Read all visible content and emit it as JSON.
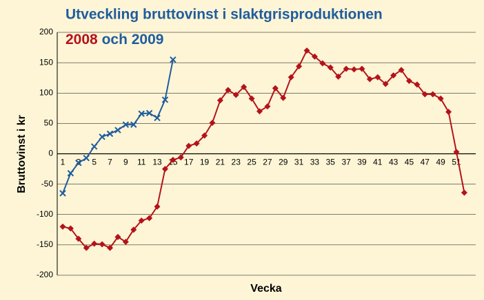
{
  "chart_data": {
    "type": "line",
    "title": "Utveckling bruttovinst i slaktgrisproduktionen",
    "title_joiner": "och",
    "y_label": "Bruttovinst i kr",
    "x_label": "Vecka",
    "categories": [
      1,
      null,
      3,
      null,
      5,
      null,
      7,
      null,
      9,
      null,
      11,
      null,
      13,
      null,
      15,
      null,
      17,
      null,
      19,
      null,
      21,
      null,
      23,
      null,
      25,
      null,
      27,
      null,
      29,
      null,
      31,
      null,
      33,
      null,
      35,
      null,
      37,
      null,
      39,
      null,
      41,
      null,
      43,
      null,
      45,
      null,
      47,
      null,
      49,
      null,
      51,
      null
    ],
    "series": [
      {
        "name": "2008",
        "color": "#b5121b",
        "marker": "diamond",
        "values": [
          -120,
          -123,
          -140,
          -155,
          -148,
          -149,
          -155,
          -137,
          -145,
          -125,
          -110,
          -106,
          -87,
          -25,
          -10,
          -6,
          13,
          17,
          30,
          51,
          88,
          105,
          97,
          110,
          91,
          70,
          78,
          108,
          92,
          126,
          144,
          170,
          160,
          149,
          142,
          127,
          140,
          139,
          140,
          123,
          126,
          115,
          129,
          138,
          120,
          114,
          98,
          98,
          91,
          69,
          3,
          -64
        ]
      },
      {
        "name": "2009",
        "color": "#1f5c9e",
        "marker": "x",
        "values": [
          -65,
          -32,
          -15,
          -7,
          12,
          28,
          33,
          39,
          48,
          48,
          66,
          67,
          59,
          89,
          155,
          null,
          null,
          null,
          null,
          null,
          null,
          null,
          null,
          null,
          null,
          null,
          null,
          null,
          null,
          null,
          null,
          null,
          null,
          null,
          null,
          null,
          null,
          null,
          null,
          null,
          null,
          null,
          null,
          null,
          null,
          null,
          null,
          null,
          null,
          null,
          null,
          null
        ]
      }
    ],
    "ylim": [
      -200,
      200
    ],
    "yticks": [
      -200,
      -150,
      -100,
      -50,
      0,
      50,
      100,
      150,
      200
    ],
    "grid": true
  }
}
